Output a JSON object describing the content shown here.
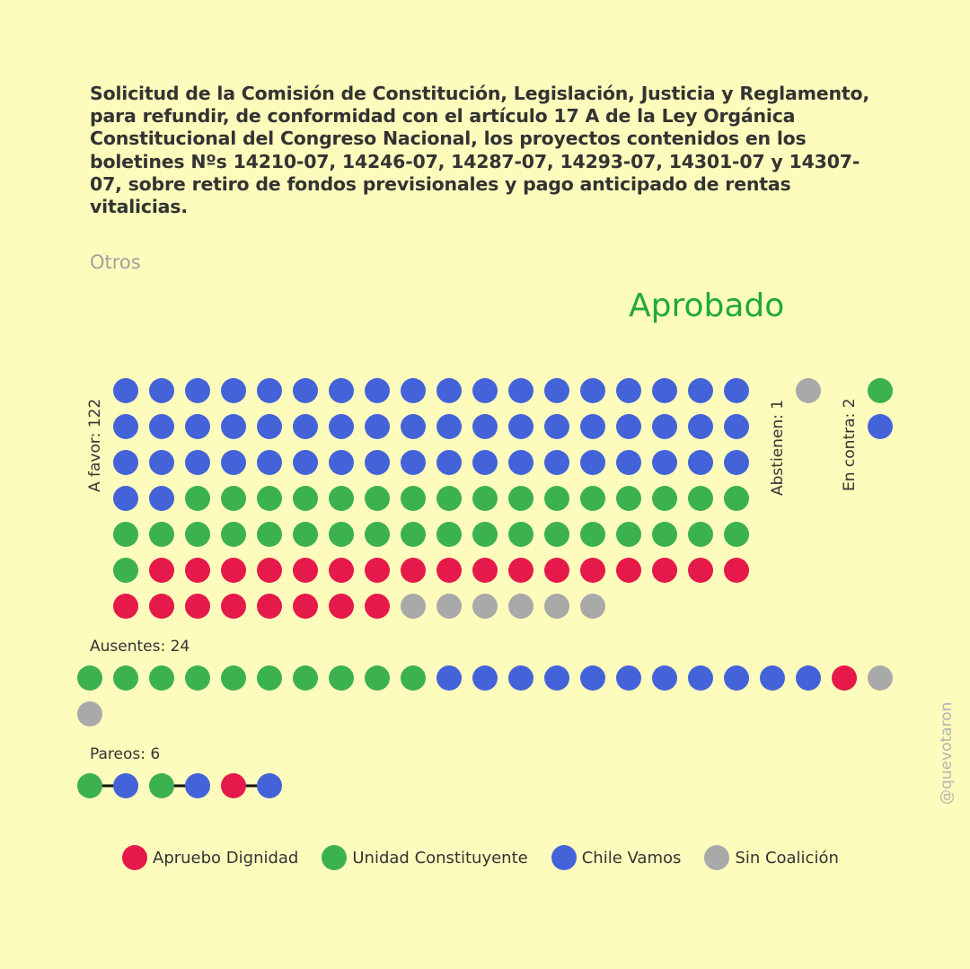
{
  "title": "Solicitud de la Comisión de Constitución, Legislación, Justicia y Reglamento, para refundir, de conformidad con el artículo 17 A de la Ley Orgánica Constitucional del Congreso Nacional, los proyectos contenidos en los boletines Nºs 14210-07, 14246-07, 14287-07, 14293-07, 14301-07 y 14307-07, sobre retiro de fondos previsionales y pago anticipado de rentas vitalicias.",
  "category": "Otros",
  "result": "Aprobado",
  "watermark": "@quevotaron",
  "colors": {
    "background": "#fdfcbc",
    "result": "#1faa3a",
    "AD": "#e5194a",
    "UC": "#3cb150",
    "CV": "#4463d9",
    "SC": "#a9a9a9"
  },
  "legend": [
    {
      "key": "AD",
      "label": "Apruebo Dignidad"
    },
    {
      "key": "UC",
      "label": "Unidad Constituyente"
    },
    {
      "key": "CV",
      "label": "Chile Vamos"
    },
    {
      "key": "SC",
      "label": "Sin Coalición"
    }
  ],
  "chart_data": {
    "type": "dot",
    "groups": [
      {
        "id": "afavor",
        "label": "A favor: 122",
        "total": 122,
        "composition": [
          {
            "party": "CV",
            "count": 56
          },
          {
            "party": "UC",
            "count": 35
          },
          {
            "party": "AD",
            "count": 25
          },
          {
            "party": "SC",
            "count": 6
          }
        ]
      },
      {
        "id": "abstienen",
        "label": "Abstienen: 1",
        "total": 1,
        "composition": [
          {
            "party": "SC",
            "count": 1
          }
        ]
      },
      {
        "id": "encontra",
        "label": "En contra: 2",
        "total": 2,
        "composition": [
          {
            "party": "UC",
            "count": 1
          },
          {
            "party": "CV",
            "count": 1
          }
        ]
      },
      {
        "id": "ausentes",
        "label": "Ausentes: 24",
        "total": 24,
        "composition": [
          {
            "party": "UC",
            "count": 10
          },
          {
            "party": "CV",
            "count": 11
          },
          {
            "party": "AD",
            "count": 1
          },
          {
            "party": "SC",
            "count": 2
          }
        ]
      },
      {
        "id": "pareos",
        "label": "Pareos: 6",
        "total": 6,
        "pairs": [
          [
            "UC",
            "CV"
          ],
          [
            "UC",
            "CV"
          ],
          [
            "AD",
            "CV"
          ]
        ]
      }
    ]
  }
}
